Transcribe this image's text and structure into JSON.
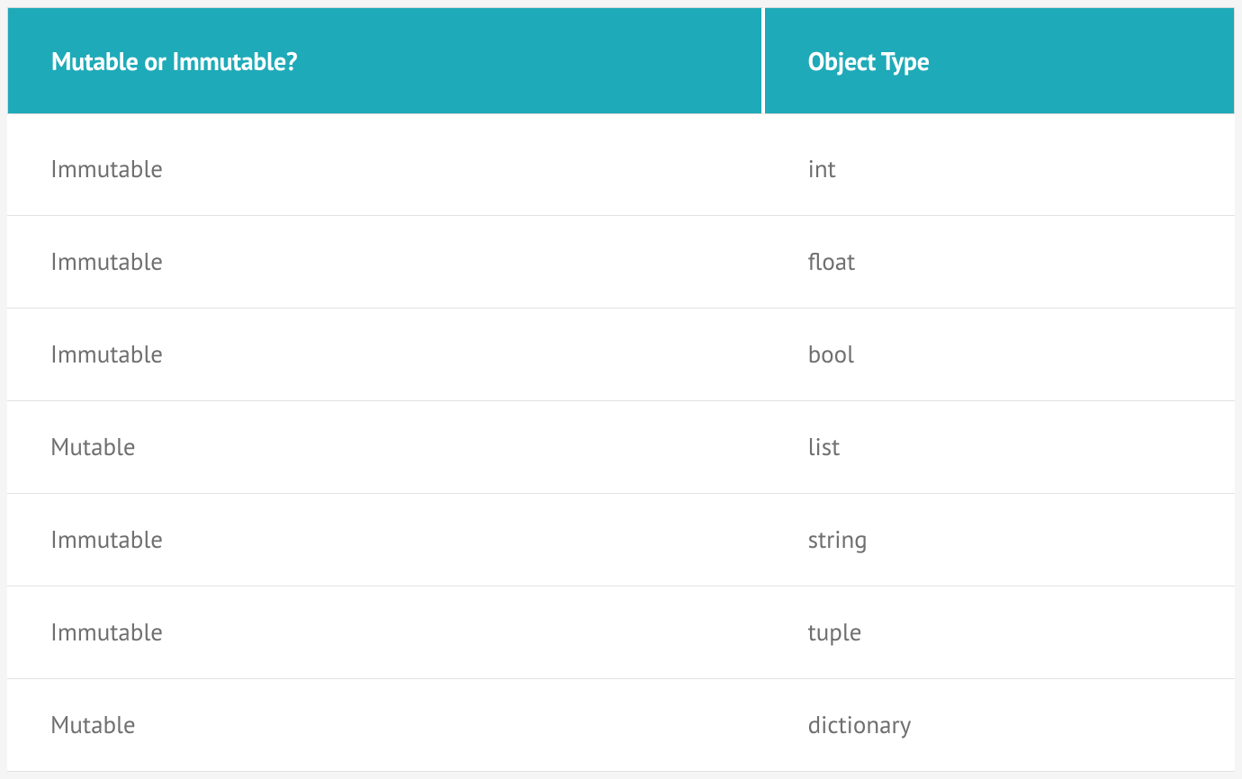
{
  "table": {
    "type": "table",
    "header_bg_color": "#1eaab8",
    "header_text_color": "#ffffff",
    "header_font_size": 28,
    "header_font_weight": 700,
    "body_text_color": "#6f6f6f",
    "body_font_size": 27,
    "body_font_weight": 400,
    "border_color": "#e2e2e2",
    "outer_border_color": "#d8d8d8",
    "background_color": "#ffffff",
    "page_background_color": "#f5f5f5",
    "column_widths_pct": [
      61.7,
      38.3
    ],
    "columns": [
      "Mutable or Immutable?",
      "Object Type"
    ],
    "rows": [
      [
        "Immutable",
        "int"
      ],
      [
        "Immutable",
        "float"
      ],
      [
        "Immutable",
        "bool"
      ],
      [
        "Mutable",
        "list"
      ],
      [
        "Immutable",
        "string"
      ],
      [
        "Immutable",
        "tuple"
      ],
      [
        "Mutable",
        "dictionary"
      ]
    ]
  }
}
